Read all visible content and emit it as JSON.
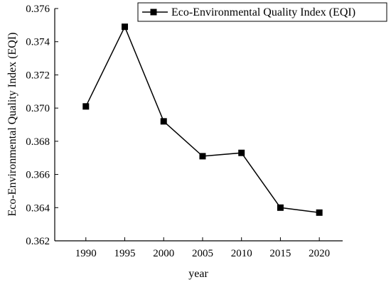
{
  "chart_data": {
    "type": "line",
    "xlabel": "year",
    "ylabel": "Eco-Environmental Quality Index (EQI)",
    "x": [
      1990,
      1995,
      2000,
      2005,
      2010,
      2015,
      2020
    ],
    "x_ticks": [
      "1990",
      "1995",
      "2000",
      "2005",
      "2010",
      "2015",
      "2020"
    ],
    "y_ticks": [
      "0.362",
      "0.364",
      "0.366",
      "0.368",
      "0.370",
      "0.372",
      "0.374",
      "0.376"
    ],
    "ylim": [
      0.362,
      0.376
    ],
    "xlim": [
      1986,
      2023
    ],
    "series": [
      {
        "name": "Eco-Environmental Quality Index (EQI)",
        "values": [
          0.3701,
          0.3749,
          0.3692,
          0.3671,
          0.3673,
          0.364,
          0.3637
        ],
        "color": "#000000",
        "marker": "square"
      }
    ],
    "legend": {
      "position": "top-right",
      "label": "Eco-Environmental Quality Index (EQI)"
    },
    "grid": false
  }
}
